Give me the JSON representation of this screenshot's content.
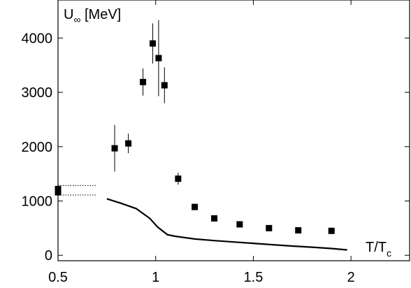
{
  "chart_data": {
    "type": "scatter",
    "ylabel_main": "U",
    "ylabel_sub": "∞",
    "ylabel_unit": " [MeV]",
    "xlabel_main": "T/T",
    "xlabel_sub": "c",
    "xlim": [
      0.5,
      2.3
    ],
    "ylim": [
      -100,
      4700
    ],
    "x_ticks": [
      0.5,
      1,
      1.5,
      2
    ],
    "x_tick_labels": [
      "0.5",
      "1",
      "1.5",
      "2"
    ],
    "y_ticks": [
      0,
      1000,
      2000,
      3000,
      4000
    ],
    "y_tick_labels": [
      "0",
      "1000",
      "2000",
      "3000",
      "4000"
    ],
    "grid": false,
    "series": [
      {
        "kind": "points_with_errors",
        "points": [
          {
            "x": 0.5,
            "y": 1220,
            "err": 0
          },
          {
            "x": 0.5,
            "y": 1160,
            "err": 0
          },
          {
            "x": 0.79,
            "y": 1970,
            "err": 430
          },
          {
            "x": 0.86,
            "y": 2060,
            "err": 180
          },
          {
            "x": 0.935,
            "y": 3190,
            "err": 250
          },
          {
            "x": 0.985,
            "y": 3900,
            "err": 370
          },
          {
            "x": 1.015,
            "y": 3630,
            "err": 700
          },
          {
            "x": 1.045,
            "y": 3130,
            "err": 330
          },
          {
            "x": 1.115,
            "y": 1410,
            "err": 110
          },
          {
            "x": 1.2,
            "y": 890,
            "err": 60
          },
          {
            "x": 1.3,
            "y": 680,
            "err": 40
          },
          {
            "x": 1.43,
            "y": 570,
            "err": 30
          },
          {
            "x": 1.58,
            "y": 500,
            "err": 30
          },
          {
            "x": 1.73,
            "y": 460,
            "err": 30
          },
          {
            "x": 1.9,
            "y": 450,
            "err": 30
          }
        ]
      },
      {
        "kind": "line",
        "style": "solid",
        "x": [
          0.75,
          0.82,
          0.9,
          0.97,
          1.01,
          1.06,
          1.1,
          1.2,
          1.3,
          1.4,
          1.5,
          1.6,
          1.7,
          1.8,
          1.9,
          1.98
        ],
        "y": [
          1040,
          960,
          860,
          680,
          520,
          380,
          350,
          300,
          270,
          245,
          220,
          195,
          170,
          150,
          125,
          100
        ]
      },
      {
        "kind": "line",
        "style": "dotted",
        "x": [
          0.5,
          0.7
        ],
        "y": [
          1285,
          1285
        ]
      },
      {
        "kind": "line",
        "style": "dotted",
        "x": [
          0.5,
          0.7
        ],
        "y": [
          1110,
          1110
        ]
      }
    ]
  }
}
